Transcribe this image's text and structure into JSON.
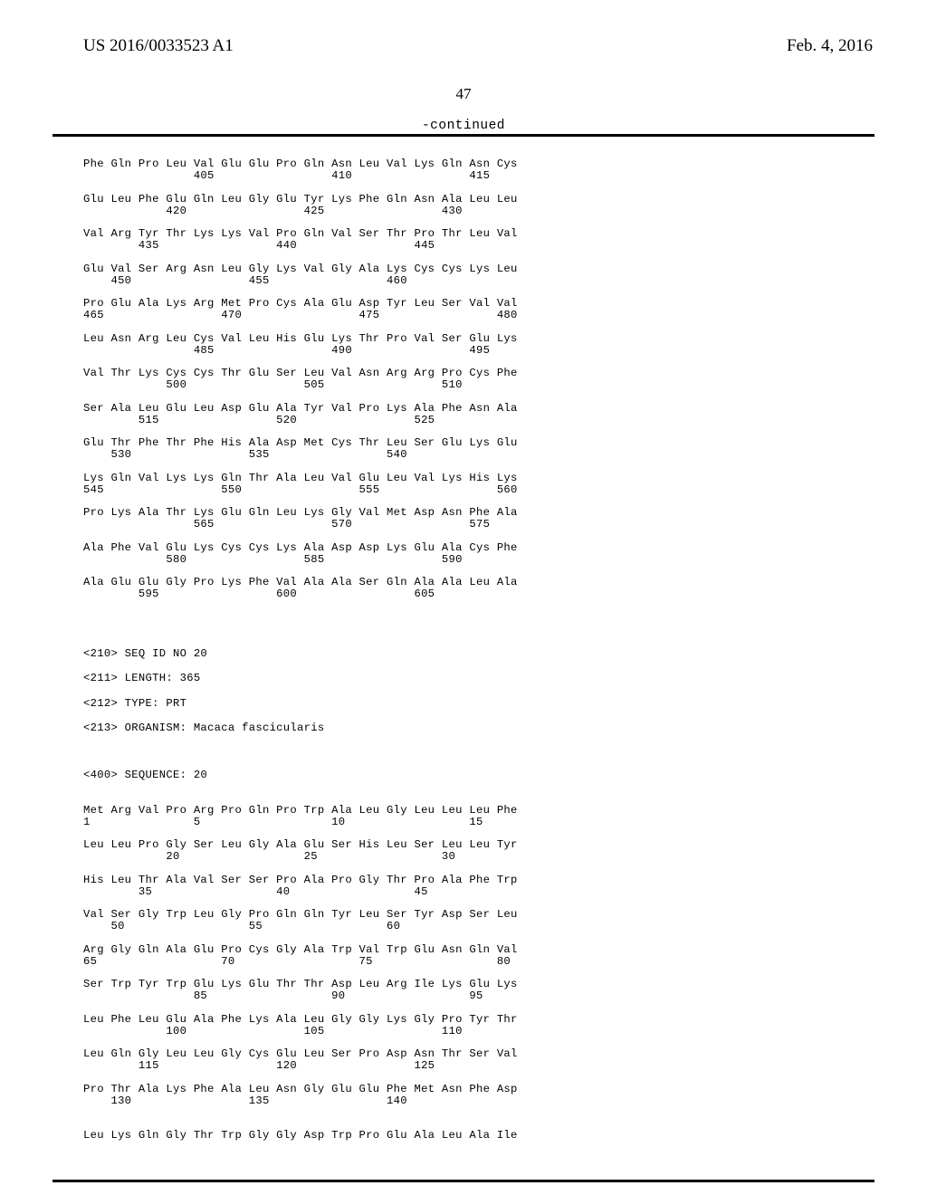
{
  "header": {
    "pub_number": "US 2016/0033523 A1",
    "pub_date": "Feb. 4, 2016",
    "page_number": "47",
    "continued": "-continued"
  },
  "blocks1": [
    {
      "aa": "Phe Gln Pro Leu Val Glu Glu Pro Gln Asn Leu Val Lys Gln Asn Cys",
      "nm": "                405                 410                 415"
    },
    {
      "aa": "Glu Leu Phe Glu Gln Leu Gly Glu Tyr Lys Phe Gln Asn Ala Leu Leu",
      "nm": "            420                 425                 430"
    },
    {
      "aa": "Val Arg Tyr Thr Lys Lys Val Pro Gln Val Ser Thr Pro Thr Leu Val",
      "nm": "        435                 440                 445"
    },
    {
      "aa": "Glu Val Ser Arg Asn Leu Gly Lys Val Gly Ala Lys Cys Cys Lys Leu",
      "nm": "    450                 455                 460"
    },
    {
      "aa": "Pro Glu Ala Lys Arg Met Pro Cys Ala Glu Asp Tyr Leu Ser Val Val",
      "nm": "465                 470                 475                 480"
    },
    {
      "aa": "Leu Asn Arg Leu Cys Val Leu His Glu Lys Thr Pro Val Ser Glu Lys",
      "nm": "                485                 490                 495"
    },
    {
      "aa": "Val Thr Lys Cys Cys Thr Glu Ser Leu Val Asn Arg Arg Pro Cys Phe",
      "nm": "            500                 505                 510"
    },
    {
      "aa": "Ser Ala Leu Glu Leu Asp Glu Ala Tyr Val Pro Lys Ala Phe Asn Ala",
      "nm": "        515                 520                 525"
    },
    {
      "aa": "Glu Thr Phe Thr Phe His Ala Asp Met Cys Thr Leu Ser Glu Lys Glu",
      "nm": "    530                 535                 540"
    },
    {
      "aa": "Lys Gln Val Lys Lys Gln Thr Ala Leu Val Glu Leu Val Lys His Lys",
      "nm": "545                 550                 555                 560"
    },
    {
      "aa": "Pro Lys Ala Thr Lys Glu Gln Leu Lys Gly Val Met Asp Asn Phe Ala",
      "nm": "                565                 570                 575"
    },
    {
      "aa": "Ala Phe Val Glu Lys Cys Cys Lys Ala Asp Asp Lys Glu Ala Cys Phe",
      "nm": "            580                 585                 590"
    },
    {
      "aa": "Ala Glu Glu Gly Pro Lys Phe Val Ala Ala Ser Gln Ala Ala Leu Ala",
      "nm": "        595                 600                 605"
    }
  ],
  "meta": {
    "l1": "<210> SEQ ID NO 20",
    "l2": "<211> LENGTH: 365",
    "l3": "<212> TYPE: PRT",
    "l4": "<213> ORGANISM: Macaca fascicularis"
  },
  "seq_hdr": "<400> SEQUENCE: 20",
  "blocks2": [
    {
      "aa": "Met Arg Val Pro Arg Pro Gln Pro Trp Ala Leu Gly Leu Leu Leu Phe",
      "nm": "1               5                   10                  15"
    },
    {
      "aa": "Leu Leu Pro Gly Ser Leu Gly Ala Glu Ser His Leu Ser Leu Leu Tyr",
      "nm": "            20                  25                  30"
    },
    {
      "aa": "His Leu Thr Ala Val Ser Ser Pro Ala Pro Gly Thr Pro Ala Phe Trp",
      "nm": "        35                  40                  45"
    },
    {
      "aa": "Val Ser Gly Trp Leu Gly Pro Gln Gln Tyr Leu Ser Tyr Asp Ser Leu",
      "nm": "    50                  55                  60"
    },
    {
      "aa": "Arg Gly Gln Ala Glu Pro Cys Gly Ala Trp Val Trp Glu Asn Gln Val",
      "nm": "65                  70                  75                  80"
    },
    {
      "aa": "Ser Trp Tyr Trp Glu Lys Glu Thr Thr Asp Leu Arg Ile Lys Glu Lys",
      "nm": "                85                  90                  95"
    },
    {
      "aa": "Leu Phe Leu Glu Ala Phe Lys Ala Leu Gly Gly Lys Gly Pro Tyr Thr",
      "nm": "            100                 105                 110"
    },
    {
      "aa": "Leu Gln Gly Leu Leu Gly Cys Glu Leu Ser Pro Asp Asn Thr Ser Val",
      "nm": "        115                 120                 125"
    },
    {
      "aa": "Pro Thr Ala Lys Phe Ala Leu Asn Gly Glu Glu Phe Met Asn Phe Asp",
      "nm": "    130                 135                 140"
    }
  ],
  "last_line": "Leu Lys Gln Gly Thr Trp Gly Gly Asp Trp Pro Glu Ala Leu Ala Ile"
}
